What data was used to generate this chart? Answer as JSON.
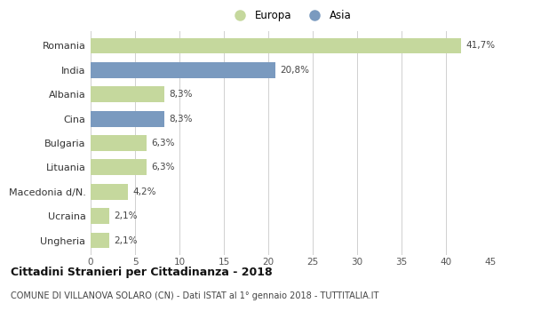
{
  "categories": [
    "Romania",
    "India",
    "Albania",
    "Cina",
    "Bulgaria",
    "Lituania",
    "Macedonia d/N.",
    "Ucraina",
    "Ungheria"
  ],
  "values": [
    41.7,
    20.8,
    8.3,
    8.3,
    6.3,
    6.3,
    4.2,
    2.1,
    2.1
  ],
  "labels": [
    "41,7%",
    "20,8%",
    "8,3%",
    "8,3%",
    "6,3%",
    "6,3%",
    "4,2%",
    "2,1%",
    "2,1%"
  ],
  "continents": [
    "Europa",
    "Asia",
    "Europa",
    "Asia",
    "Europa",
    "Europa",
    "Europa",
    "Europa",
    "Europa"
  ],
  "color_europa": "#c5d89d",
  "color_asia": "#7a9abf",
  "bg_color": "#ffffff",
  "grid_color": "#d0d0d0",
  "title": "Cittadini Stranieri per Cittadinanza - 2018",
  "subtitle": "COMUNE DI VILLANOVA SOLARO (CN) - Dati ISTAT al 1° gennaio 2018 - TUTTITALIA.IT",
  "legend_europa": "Europa",
  "legend_asia": "Asia",
  "xlim": [
    0,
    45
  ],
  "xticks": [
    0,
    5,
    10,
    15,
    20,
    25,
    30,
    35,
    40,
    45
  ]
}
